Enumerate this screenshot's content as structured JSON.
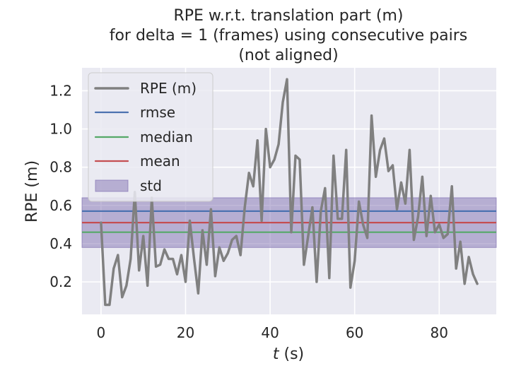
{
  "chart_data": {
    "type": "line",
    "title_lines": [
      "RPE w.r.t. translation part (m)",
      "for delta = 1 (frames) using consecutive pairs",
      "(not aligned)"
    ],
    "xlabel_italic": "t",
    "xlabel_rest": " (s)",
    "ylabel": "RPE (m)",
    "xlim": [
      -4.5,
      93.5
    ],
    "ylim": [
      0.03,
      1.32
    ],
    "xticks": [
      0,
      20,
      40,
      60,
      80
    ],
    "xtick_labels": [
      "0",
      "20",
      "40",
      "60",
      "80"
    ],
    "yticks": [
      0.2,
      0.4,
      0.6,
      0.8,
      1.0,
      1.2
    ],
    "ytick_labels": [
      "0.2",
      "0.4",
      "0.6",
      "0.8",
      "1.0",
      "1.2"
    ],
    "grid": true,
    "background": "#eaeaf2",
    "legend_position": "top-left",
    "series": [
      {
        "name": "RPE (m)",
        "color": "#808080",
        "x": [
          0,
          1,
          2,
          3,
          4,
          5,
          6,
          7,
          8,
          9,
          10,
          11,
          12,
          13,
          14,
          15,
          16,
          17,
          18,
          19,
          20,
          21,
          22,
          23,
          24,
          25,
          26,
          27,
          28,
          29,
          30,
          31,
          32,
          33,
          34,
          35,
          36,
          37,
          38,
          39,
          40,
          41,
          42,
          43,
          44,
          45,
          46,
          47,
          48,
          49,
          50,
          51,
          52,
          53,
          54,
          55,
          56,
          57,
          58,
          59,
          60,
          61,
          62,
          63,
          64,
          65,
          66,
          67,
          68,
          69,
          70,
          71,
          72,
          73,
          74,
          75,
          76,
          77,
          78,
          79,
          80,
          81,
          82,
          83,
          84,
          85,
          86,
          87,
          88,
          89
        ],
        "y": [
          0.51,
          0.08,
          0.08,
          0.27,
          0.34,
          0.12,
          0.18,
          0.32,
          0.67,
          0.26,
          0.44,
          0.18,
          0.64,
          0.28,
          0.29,
          0.37,
          0.32,
          0.32,
          0.24,
          0.34,
          0.2,
          0.52,
          0.32,
          0.14,
          0.47,
          0.29,
          0.58,
          0.23,
          0.38,
          0.31,
          0.35,
          0.42,
          0.44,
          0.34,
          0.59,
          0.77,
          0.7,
          0.94,
          0.52,
          1.0,
          0.8,
          0.84,
          0.92,
          1.14,
          1.26,
          0.46,
          0.86,
          0.84,
          0.29,
          0.44,
          0.59,
          0.2,
          0.57,
          0.69,
          0.22,
          0.86,
          0.53,
          0.53,
          0.89,
          0.17,
          0.31,
          0.62,
          0.5,
          0.43,
          1.07,
          0.75,
          0.89,
          0.95,
          0.78,
          0.81,
          0.58,
          0.72,
          0.61,
          0.89,
          0.42,
          0.54,
          0.75,
          0.44,
          0.65,
          0.46,
          0.5,
          0.43,
          0.45,
          0.7,
          0.27,
          0.41,
          0.19,
          0.33,
          0.24,
          0.19
        ]
      },
      {
        "name": "rmse",
        "color": "#4c72b0",
        "value": 0.57
      },
      {
        "name": "median",
        "color": "#55a868",
        "value": 0.46
      },
      {
        "name": "mean",
        "color": "#c44e52",
        "value": 0.51
      },
      {
        "name": "std",
        "color": "#8172b2",
        "range": [
          0.38,
          0.64
        ]
      }
    ]
  }
}
